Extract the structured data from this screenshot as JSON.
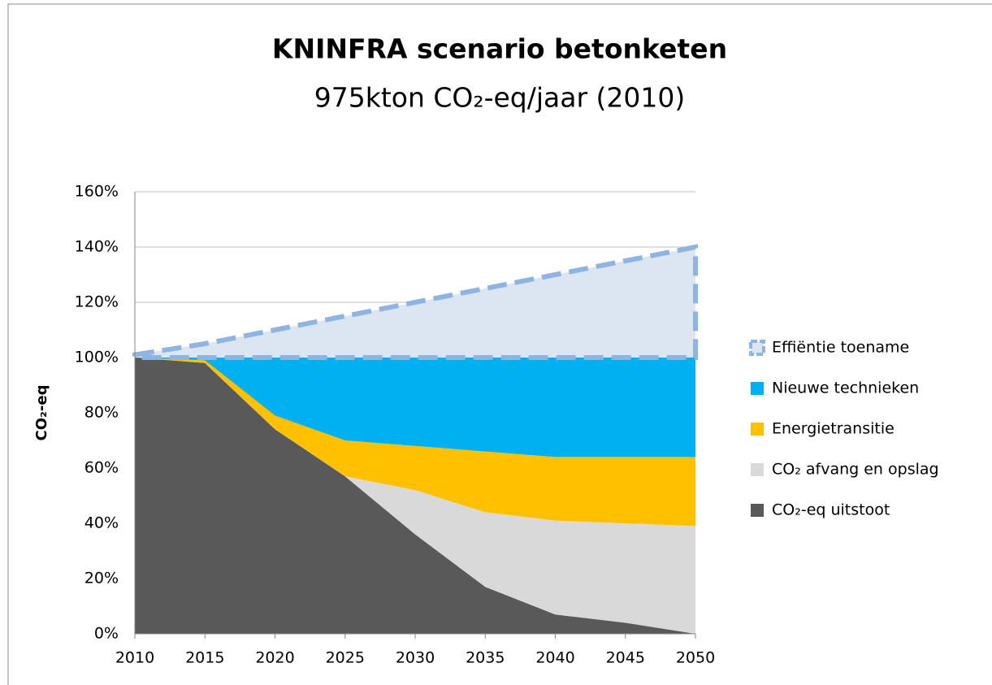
{
  "chart_data": {
    "type": "stacked_area",
    "title": "KNINFRA scenario betonketen",
    "subtitle": "975kton CO₂-eq/jaar (2010)",
    "y_label": "CO₂-eq",
    "x": [
      2010,
      2015,
      2020,
      2025,
      2030,
      2035,
      2040,
      2045,
      2050
    ],
    "xlim": [
      2010,
      2050
    ],
    "xticks": [
      2010,
      2015,
      2020,
      2025,
      2030,
      2035,
      2040,
      2045,
      2050
    ],
    "ylim": [
      0,
      160
    ],
    "yticks": [
      {
        "value": 0,
        "label": "0%"
      },
      {
        "value": 20,
        "label": "20%"
      },
      {
        "value": 40,
        "label": "40%"
      },
      {
        "value": 60,
        "label": "60%"
      },
      {
        "value": 80,
        "label": "80%"
      },
      {
        "value": 100,
        "label": "100%"
      },
      {
        "value": 120,
        "label": "120%"
      },
      {
        "value": 140,
        "label": "140%"
      },
      {
        "value": 160,
        "label": "160%"
      }
    ],
    "grid": true,
    "legend": "right",
    "series": [
      {
        "name": "CO₂-eq uitstoot",
        "color": "#595959",
        "values": [
          100,
          98,
          74,
          57,
          36,
          17,
          7,
          4,
          0
        ]
      },
      {
        "name": "CO₂ afvang en opslag",
        "color": "#d9d9d9",
        "values": [
          0,
          0,
          0,
          0,
          16,
          27,
          34,
          36,
          39
        ]
      },
      {
        "name": "Energietransitie",
        "color": "#ffc000",
        "values": [
          0,
          1,
          5,
          13,
          16,
          22,
          23,
          24,
          25
        ]
      },
      {
        "name": "Nieuwe technieken",
        "color": "#00b0f0",
        "values": [
          0,
          1,
          21,
          30,
          32,
          34,
          36,
          36,
          36
        ]
      },
      {
        "name": "Effiëntie  toename",
        "color": "#dce6f2",
        "edge": "#8db4e2",
        "values": [
          1,
          5,
          10,
          15,
          20,
          25,
          30,
          35,
          40
        ]
      }
    ]
  }
}
